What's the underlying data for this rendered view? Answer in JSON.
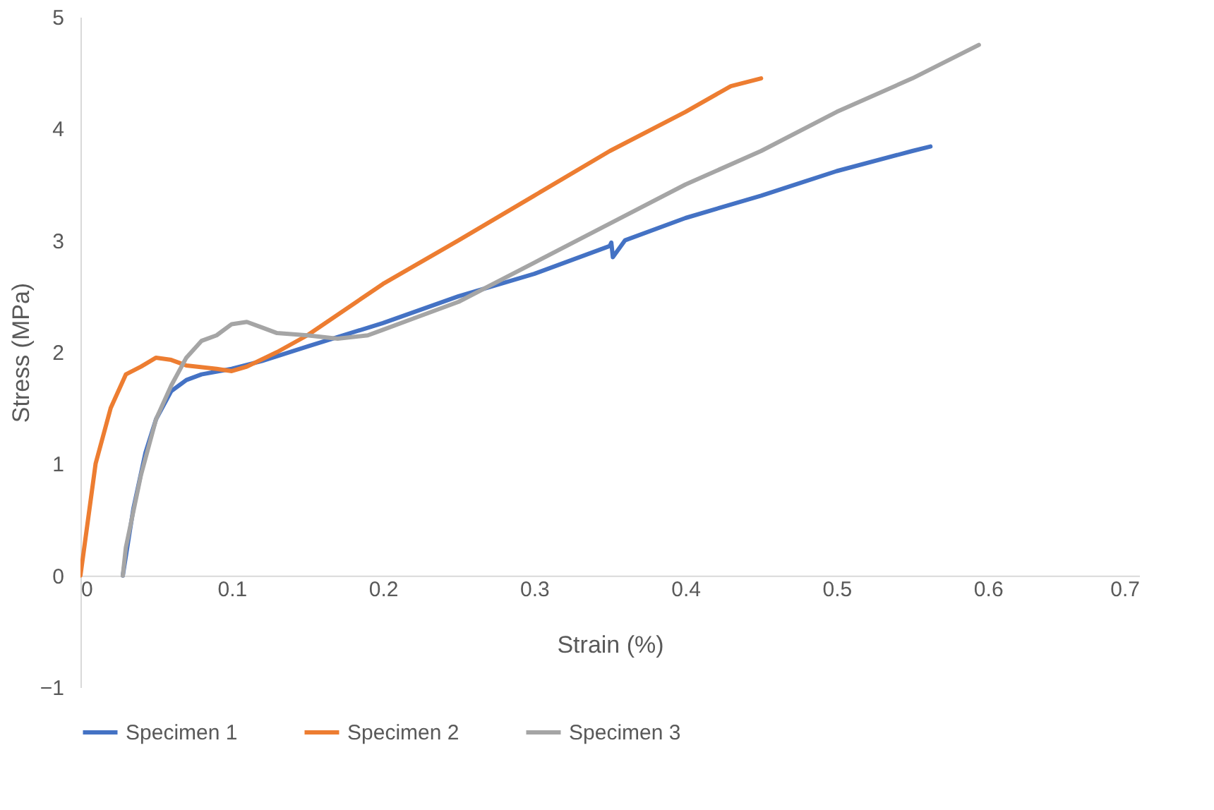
{
  "chart_data": {
    "type": "line",
    "xlabel": "Strain (%)",
    "ylabel": "Stress (MPa)",
    "xlim": [
      0,
      0.7
    ],
    "xticks": [
      0,
      0.1,
      0.2,
      0.3,
      0.4,
      0.5,
      0.6,
      0.7
    ],
    "ylim": [
      -1,
      5
    ],
    "yticks": [
      -1,
      0,
      1,
      2,
      3,
      4,
      5
    ],
    "grid": false,
    "legend": "bottom",
    "marker": "none",
    "line_style": "solid",
    "series": [
      {
        "name": "Specimen 1",
        "color": "#4472c4",
        "x": [
          0.028,
          0.035,
          0.043,
          0.05,
          0.06,
          0.07,
          0.08,
          0.1,
          0.12,
          0.15,
          0.2,
          0.25,
          0.3,
          0.35,
          0.351,
          0.352,
          0.36,
          0.4,
          0.45,
          0.5,
          0.55,
          0.562
        ],
        "values": [
          0,
          0.6,
          1.1,
          1.4,
          1.65,
          1.75,
          1.8,
          1.85,
          1.92,
          2.05,
          2.26,
          2.5,
          2.7,
          2.95,
          2.98,
          2.85,
          3.0,
          3.2,
          3.4,
          3.62,
          3.8,
          3.84
        ]
      },
      {
        "name": "Specimen 2",
        "color": "#ed7d31",
        "x": [
          0,
          0.005,
          0.01,
          0.02,
          0.03,
          0.04,
          0.05,
          0.06,
          0.07,
          0.09,
          0.1,
          0.11,
          0.13,
          0.15,
          0.2,
          0.25,
          0.3,
          0.35,
          0.4,
          0.43,
          0.45
        ],
        "values": [
          0,
          0.5,
          1.0,
          1.5,
          1.8,
          1.87,
          1.95,
          1.93,
          1.88,
          1.85,
          1.83,
          1.87,
          2.0,
          2.15,
          2.61,
          3.0,
          3.4,
          3.8,
          4.15,
          4.38,
          4.45
        ]
      },
      {
        "name": "Specimen 3",
        "color": "#a5a5a5",
        "x": [
          0.028,
          0.03,
          0.04,
          0.05,
          0.06,
          0.07,
          0.08,
          0.09,
          0.1,
          0.11,
          0.12,
          0.13,
          0.15,
          0.17,
          0.19,
          0.2,
          0.22,
          0.25,
          0.3,
          0.35,
          0.4,
          0.45,
          0.5,
          0.55,
          0.594
        ],
        "values": [
          0,
          0.25,
          0.9,
          1.4,
          1.7,
          1.95,
          2.1,
          2.15,
          2.25,
          2.27,
          2.22,
          2.17,
          2.15,
          2.12,
          2.15,
          2.2,
          2.3,
          2.45,
          2.8,
          3.15,
          3.5,
          3.8,
          4.15,
          4.45,
          4.75
        ]
      }
    ]
  }
}
